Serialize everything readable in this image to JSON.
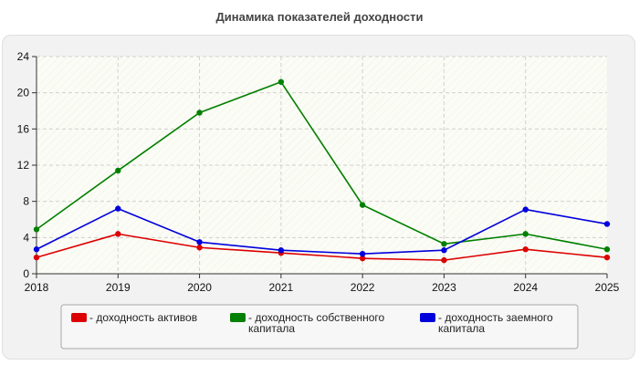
{
  "chart_data": {
    "type": "line",
    "title": "Динамика показателей доходности",
    "x": [
      "2018",
      "2019",
      "2020",
      "2021",
      "2022",
      "2023",
      "2024",
      "2025"
    ],
    "ylim": [
      0,
      24
    ],
    "yticks": [
      0,
      4,
      8,
      12,
      16,
      20,
      24
    ],
    "grid": true,
    "legend_position": "bottom",
    "series": [
      {
        "name": "- доходность активов",
        "legend_lines": [
          "- доходность активов"
        ],
        "color": "#dd0000",
        "values": [
          1.8,
          4.4,
          2.9,
          2.3,
          1.7,
          1.5,
          2.7,
          1.8
        ]
      },
      {
        "name": "- доходность собственного капитала",
        "legend_lines": [
          "- доходность собственного",
          "капитала"
        ],
        "color": "#008000",
        "values": [
          4.9,
          11.4,
          17.8,
          21.2,
          7.6,
          3.3,
          4.4,
          2.7
        ]
      },
      {
        "name": "- доходность заемного капитала",
        "legend_lines": [
          "- доходность заемного",
          "капитала"
        ],
        "color": "#0000dd",
        "values": [
          2.7,
          7.2,
          3.5,
          2.6,
          2.2,
          2.6,
          7.1,
          5.5
        ]
      }
    ]
  }
}
